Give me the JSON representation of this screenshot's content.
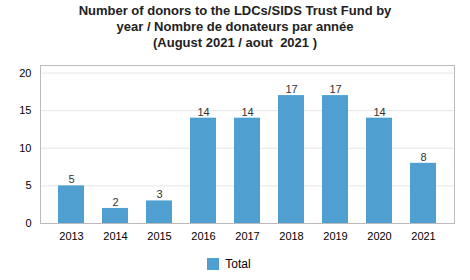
{
  "chart_data": {
    "type": "bar",
    "title": "Number of donors to the LDCs/SIDS Trust Fund by\nyear / Nombre de donateurs par année\n(August 2021 / aout  2021 )",
    "categories": [
      "2013",
      "2014",
      "2015",
      "2016",
      "2017",
      "2018",
      "2019",
      "2020",
      "2021"
    ],
    "series": [
      {
        "name": "Total",
        "color": "#4F9FD0",
        "values": [
          5,
          2,
          3,
          14,
          14,
          17,
          17,
          14,
          8
        ]
      }
    ],
    "ylim": [
      0,
      21
    ],
    "yticks": [
      0,
      5,
      10,
      15,
      20
    ],
    "grid": true,
    "data_labels": true,
    "legend": "bottom"
  }
}
